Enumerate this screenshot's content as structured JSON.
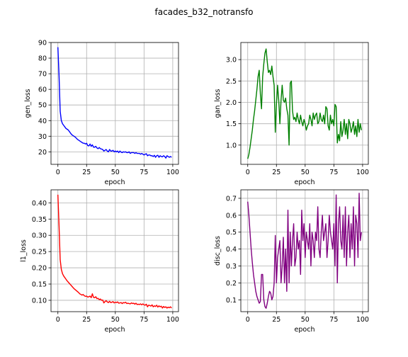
{
  "figure": {
    "title": "facades_b32_notransfo"
  },
  "chart_data": [
    {
      "type": "line",
      "xlabel": "epoch",
      "ylabel": "gen_loss",
      "xlim": [
        -6,
        105
      ],
      "ylim": [
        12,
        90
      ],
      "xticks": [
        0,
        25,
        50,
        75,
        100
      ],
      "yticks": [
        20,
        30,
        40,
        50,
        60,
        70,
        80,
        90
      ],
      "grid": true,
      "color": "#0000ff",
      "x": [
        0,
        1,
        2,
        3,
        4,
        5,
        6,
        7,
        8,
        9,
        10,
        11,
        12,
        13,
        14,
        15,
        16,
        17,
        18,
        19,
        20,
        21,
        22,
        23,
        24,
        25,
        26,
        27,
        28,
        29,
        30,
        31,
        32,
        33,
        34,
        35,
        36,
        37,
        38,
        39,
        40,
        41,
        42,
        43,
        44,
        45,
        46,
        47,
        48,
        49,
        50,
        51,
        52,
        53,
        54,
        55,
        56,
        57,
        58,
        59,
        60,
        61,
        62,
        63,
        64,
        65,
        66,
        67,
        68,
        69,
        70,
        71,
        72,
        73,
        74,
        75,
        76,
        77,
        78,
        79,
        80,
        81,
        82,
        83,
        84,
        85,
        86,
        87,
        88,
        89,
        90,
        91,
        92,
        93,
        94,
        95,
        96,
        97,
        98,
        99
      ],
      "y": [
        87,
        69,
        46,
        40,
        38,
        37,
        36,
        35,
        34.5,
        34,
        33,
        32,
        31,
        30.5,
        30,
        29.5,
        28.8,
        28,
        27.5,
        27,
        26.5,
        26,
        25.5,
        25.5,
        25,
        25.5,
        24,
        23.8,
        25,
        23.5,
        24.5,
        23,
        23,
        23.5,
        22.5,
        22,
        22.8,
        22,
        21.8,
        21.5,
        20.5,
        21,
        21.5,
        20.5,
        20,
        21.5,
        20.5,
        20.5,
        21,
        20,
        20.5,
        20,
        20.5,
        19.5,
        20.5,
        19.8,
        19.5,
        20,
        19.8,
        20,
        19.5,
        19.5,
        20,
        19,
        19.5,
        19.5,
        19.5,
        19,
        19.5,
        19,
        19,
        19,
        18.5,
        19,
        18.5,
        18,
        18.5,
        18.8,
        17.5,
        18,
        18,
        17.5,
        17.5,
        17,
        17.8,
        16.5,
        17.5,
        17.8,
        16.5,
        17.5,
        17,
        16.8,
        17.5,
        17,
        16,
        17.5,
        17,
        16.5,
        17,
        16.5
      ]
    },
    {
      "type": "line",
      "xlabel": "epoch",
      "ylabel": "gan_loss",
      "xlim": [
        -6,
        105
      ],
      "ylim": [
        0.55,
        3.4
      ],
      "xticks": [
        0,
        25,
        50,
        75,
        100
      ],
      "yticks": [
        1.0,
        1.5,
        2.0,
        2.5,
        3.0
      ],
      "grid": true,
      "color": "#008000",
      "x": [
        0,
        1,
        2,
        3,
        4,
        5,
        6,
        7,
        8,
        9,
        10,
        11,
        12,
        13,
        14,
        15,
        16,
        17,
        18,
        19,
        20,
        21,
        22,
        23,
        24,
        25,
        26,
        27,
        28,
        29,
        30,
        31,
        32,
        33,
        34,
        35,
        36,
        37,
        38,
        39,
        40,
        41,
        42,
        43,
        44,
        45,
        46,
        47,
        48,
        49,
        50,
        51,
        52,
        53,
        54,
        55,
        56,
        57,
        58,
        59,
        60,
        61,
        62,
        63,
        64,
        65,
        66,
        67,
        68,
        69,
        70,
        71,
        72,
        73,
        74,
        75,
        76,
        77,
        78,
        79,
        80,
        81,
        82,
        83,
        84,
        85,
        86,
        87,
        88,
        89,
        90,
        91,
        92,
        93,
        94,
        95,
        96,
        97,
        98,
        99
      ],
      "y": [
        0.68,
        0.78,
        0.95,
        1.15,
        1.35,
        1.6,
        1.8,
        2.05,
        2.3,
        2.6,
        2.75,
        2.2,
        1.85,
        2.6,
        2.9,
        3.15,
        3.25,
        2.95,
        2.7,
        2.75,
        2.65,
        2.85,
        2.6,
        2.4,
        1.3,
        1.95,
        2.4,
        2.05,
        1.5,
        2.05,
        2.4,
        2.05,
        2.0,
        2.1,
        1.85,
        1.7,
        1.0,
        2.45,
        2.5,
        1.8,
        1.6,
        1.65,
        1.55,
        1.75,
        1.6,
        1.5,
        1.7,
        1.55,
        1.45,
        1.6,
        1.5,
        1.35,
        1.45,
        1.5,
        1.7,
        1.6,
        1.45,
        1.75,
        1.6,
        1.7,
        1.75,
        1.5,
        1.55,
        1.75,
        1.6,
        1.55,
        1.7,
        1.5,
        1.9,
        1.85,
        1.45,
        1.35,
        1.7,
        1.5,
        1.6,
        1.45,
        1.95,
        1.9,
        1.05,
        1.25,
        1.1,
        1.55,
        1.2,
        1.35,
        1.6,
        1.25,
        1.5,
        1.15,
        1.6,
        1.5,
        1.3,
        1.4,
        1.55,
        1.25,
        1.45,
        1.2,
        1.6,
        1.3,
        1.5,
        1.35
      ]
    },
    {
      "type": "line",
      "xlabel": "epoch",
      "ylabel": "l1_loss",
      "xlim": [
        -6,
        105
      ],
      "ylim": [
        0.065,
        0.44
      ],
      "xticks": [
        0,
        25,
        50,
        75,
        100
      ],
      "yticks": [
        0.1,
        0.15,
        0.2,
        0.25,
        0.3,
        0.35,
        0.4
      ],
      "grid": true,
      "color": "#ff0000",
      "x": [
        0,
        1,
        2,
        3,
        4,
        5,
        6,
        7,
        8,
        9,
        10,
        11,
        12,
        13,
        14,
        15,
        16,
        17,
        18,
        19,
        20,
        21,
        22,
        23,
        24,
        25,
        26,
        27,
        28,
        29,
        30,
        31,
        32,
        33,
        34,
        35,
        36,
        37,
        38,
        39,
        40,
        41,
        42,
        43,
        44,
        45,
        46,
        47,
        48,
        49,
        50,
        51,
        52,
        53,
        54,
        55,
        56,
        57,
        58,
        59,
        60,
        61,
        62,
        63,
        64,
        65,
        66,
        67,
        68,
        69,
        70,
        71,
        72,
        73,
        74,
        75,
        76,
        77,
        78,
        79,
        80,
        81,
        82,
        83,
        84,
        85,
        86,
        87,
        88,
        89,
        90,
        91,
        92,
        93,
        94,
        95,
        96,
        97,
        98,
        99
      ],
      "y": [
        0.425,
        0.33,
        0.225,
        0.195,
        0.182,
        0.175,
        0.17,
        0.165,
        0.16,
        0.156,
        0.152,
        0.148,
        0.144,
        0.14,
        0.136,
        0.133,
        0.13,
        0.127,
        0.124,
        0.12,
        0.118,
        0.116,
        0.118,
        0.114,
        0.112,
        0.113,
        0.11,
        0.111,
        0.113,
        0.108,
        0.12,
        0.109,
        0.108,
        0.111,
        0.105,
        0.106,
        0.102,
        0.104,
        0.1,
        0.101,
        0.092,
        0.096,
        0.099,
        0.095,
        0.093,
        0.097,
        0.093,
        0.094,
        0.096,
        0.092,
        0.094,
        0.093,
        0.095,
        0.091,
        0.092,
        0.093,
        0.09,
        0.093,
        0.092,
        0.094,
        0.09,
        0.091,
        0.09,
        0.089,
        0.092,
        0.09,
        0.091,
        0.088,
        0.091,
        0.087,
        0.088,
        0.087,
        0.089,
        0.086,
        0.089,
        0.086,
        0.085,
        0.088,
        0.08,
        0.085,
        0.084,
        0.082,
        0.086,
        0.08,
        0.083,
        0.081,
        0.085,
        0.079,
        0.083,
        0.08,
        0.082,
        0.076,
        0.081,
        0.078,
        0.08,
        0.076,
        0.079,
        0.077,
        0.08,
        0.076
      ]
    },
    {
      "type": "line",
      "xlabel": "epoch",
      "ylabel": "disc_loss",
      "xlim": [
        -6,
        105
      ],
      "ylim": [
        0.03,
        0.75
      ],
      "xticks": [
        0,
        25,
        50,
        75,
        100
      ],
      "yticks": [
        0.1,
        0.2,
        0.3,
        0.4,
        0.5,
        0.6,
        0.7
      ],
      "grid": true,
      "color": "#800080",
      "x": [
        0,
        1,
        2,
        3,
        4,
        5,
        6,
        7,
        8,
        9,
        10,
        11,
        12,
        13,
        14,
        15,
        16,
        17,
        18,
        19,
        20,
        21,
        22,
        23,
        24,
        25,
        26,
        27,
        28,
        29,
        30,
        31,
        32,
        33,
        34,
        35,
        36,
        37,
        38,
        39,
        40,
        41,
        42,
        43,
        44,
        45,
        46,
        47,
        48,
        49,
        50,
        51,
        52,
        53,
        54,
        55,
        56,
        57,
        58,
        59,
        60,
        61,
        62,
        63,
        64,
        65,
        66,
        67,
        68,
        69,
        70,
        71,
        72,
        73,
        74,
        75,
        76,
        77,
        78,
        79,
        80,
        81,
        82,
        83,
        84,
        85,
        86,
        87,
        88,
        89,
        90,
        91,
        92,
        93,
        94,
        95,
        96,
        97,
        98,
        99
      ],
      "y": [
        0.68,
        0.6,
        0.5,
        0.4,
        0.32,
        0.25,
        0.2,
        0.15,
        0.12,
        0.1,
        0.08,
        0.09,
        0.25,
        0.25,
        0.1,
        0.06,
        0.05,
        0.08,
        0.12,
        0.15,
        0.14,
        0.1,
        0.12,
        0.2,
        0.48,
        0.2,
        0.35,
        0.4,
        0.45,
        0.2,
        0.3,
        0.47,
        0.2,
        0.4,
        0.15,
        0.63,
        0.2,
        0.5,
        0.3,
        0.45,
        0.55,
        0.3,
        0.35,
        0.5,
        0.4,
        0.45,
        0.25,
        0.63,
        0.45,
        0.55,
        0.35,
        0.5,
        0.45,
        0.4,
        0.55,
        0.3,
        0.5,
        0.45,
        0.35,
        0.5,
        0.45,
        0.65,
        0.4,
        0.35,
        0.5,
        0.6,
        0.45,
        0.5,
        0.55,
        0.35,
        0.45,
        0.6,
        0.5,
        0.45,
        0.4,
        0.55,
        0.3,
        0.72,
        0.2,
        0.55,
        0.65,
        0.45,
        0.4,
        0.6,
        0.35,
        0.65,
        0.3,
        0.5,
        0.6,
        0.35,
        0.55,
        0.4,
        0.65,
        0.3,
        0.6,
        0.55,
        0.35,
        0.73,
        0.45,
        0.5
      ]
    }
  ]
}
